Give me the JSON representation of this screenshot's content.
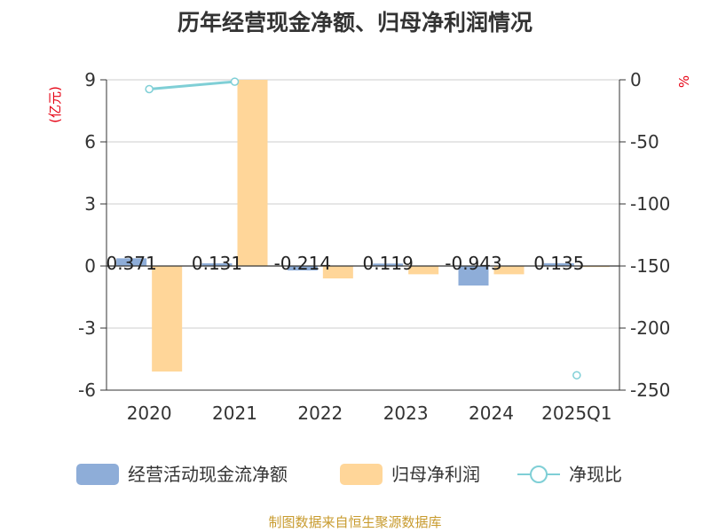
{
  "chart_data": {
    "type": "bar",
    "title": "历年经营现金净额、归母净利润情况",
    "categories": [
      "2020",
      "2021",
      "2022",
      "2023",
      "2024",
      "2025Q1"
    ],
    "y_left": {
      "unit": "(亿元)",
      "ticks": [
        9,
        6,
        3,
        0,
        -3,
        -6
      ],
      "range": [
        -6,
        9
      ]
    },
    "y_right": {
      "unit": "%",
      "ticks": [
        0,
        -50,
        -100,
        -150,
        -200,
        -250
      ],
      "range": [
        -250,
        0
      ]
    },
    "series": [
      {
        "name": "经营活动现金流净额",
        "type": "bar",
        "axis": "left",
        "color": "#8eadd8",
        "values": [
          0.371,
          0.131,
          -0.214,
          0.119,
          -0.943,
          0.135
        ],
        "labels": [
          "0.371",
          "0.131",
          "-0.214",
          "0.119",
          "-0.943",
          "0.135"
        ]
      },
      {
        "name": "归母净利润",
        "type": "bar",
        "axis": "left",
        "color": "#ffd699",
        "values": [
          -5.1,
          9.0,
          -0.6,
          -0.4,
          -0.4,
          -0.05
        ]
      },
      {
        "name": "净现比",
        "type": "line",
        "axis": "right",
        "color": "#7fcfd6",
        "values": [
          -7.5,
          -1.5,
          null,
          null,
          null,
          -238
        ]
      }
    ],
    "legend_position": "bottom",
    "grid": true
  },
  "source_text": "制图数据来自恒生聚源数据库"
}
